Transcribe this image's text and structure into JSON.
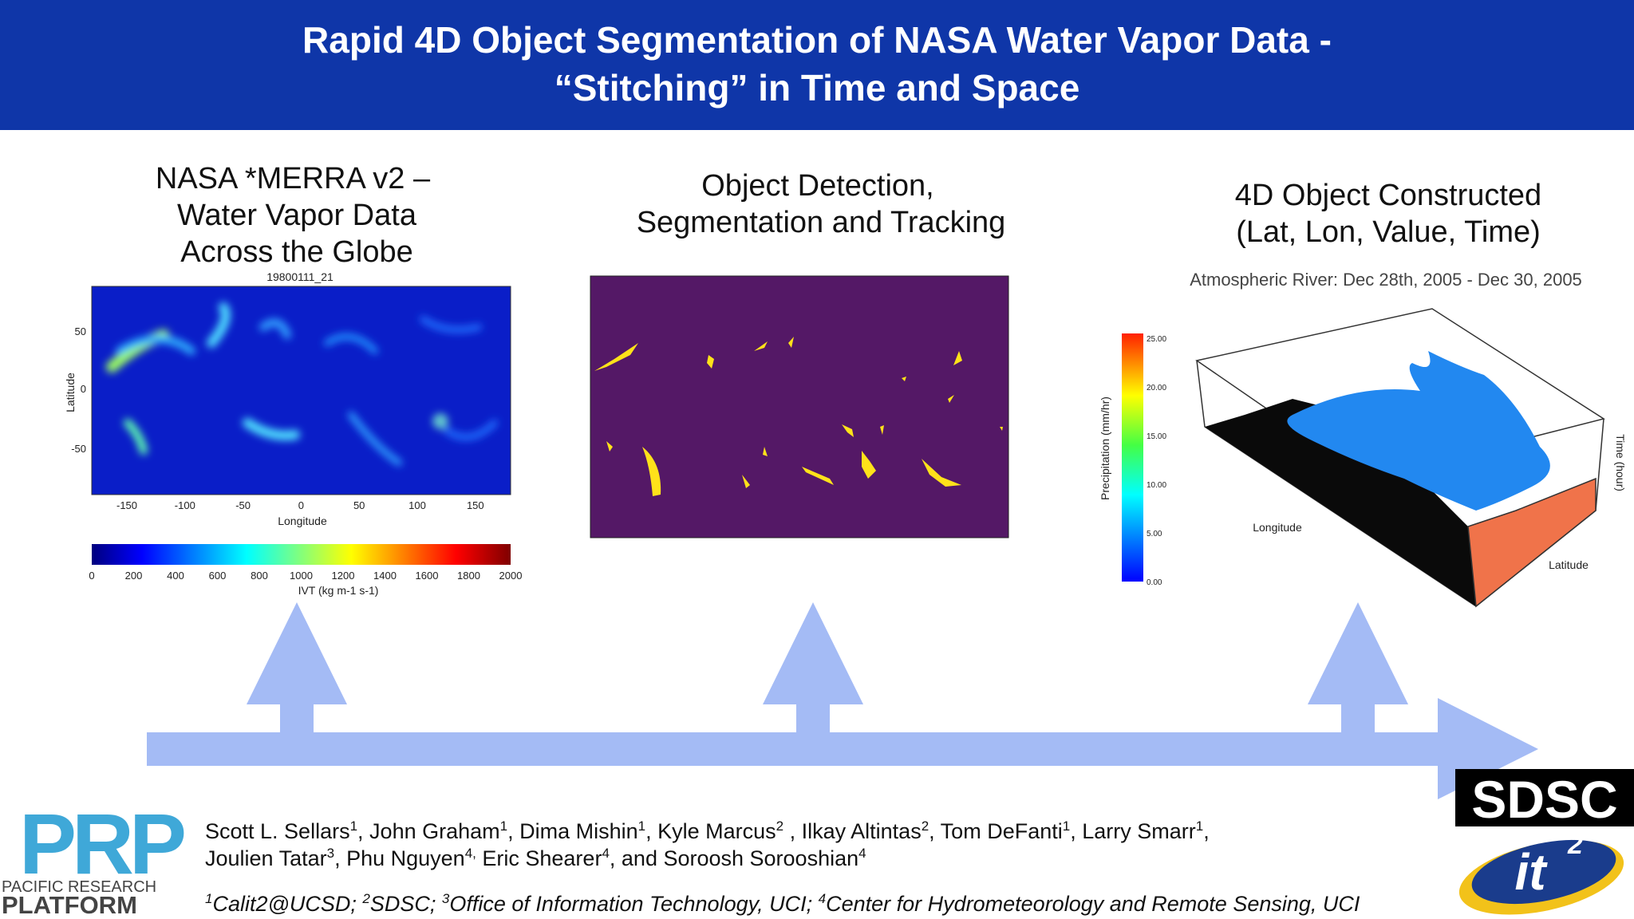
{
  "header": {
    "title_lines": [
      "Rapid 4D Object Segmentation of NASA Water Vapor Data -",
      "“Stitching” in Time and Space"
    ]
  },
  "panels": [
    {
      "title_lines": [
        "NASA *MERRA v2 –",
        "Water Vapor Data",
        "Across the Globe"
      ],
      "figure": {
        "timestamp": "19800111_21",
        "y_label": "Latitude",
        "x_label": "Longitude",
        "y_ticks": [
          "50",
          "0",
          "-50"
        ],
        "x_ticks": [
          "-150",
          "-100",
          "-50",
          "0",
          "50",
          "100",
          "150"
        ],
        "colorbar_ticks": [
          "0",
          "200",
          "400",
          "600",
          "800",
          "1000",
          "1200",
          "1400",
          "1600",
          "1800",
          "2000"
        ],
        "colorbar_label": "IVT (kg m-1 s-1)"
      }
    },
    {
      "title_lines": [
        "Object Detection,",
        "Segmentation and Tracking"
      ]
    },
    {
      "title_lines": [
        "4D Object Constructed",
        "(Lat, Lon, Value, Time)"
      ],
      "figure": {
        "title": "Atmospheric River: Dec 28th, 2005 - Dec 30, 2005",
        "colorbar_label": "Precipitation (mm/hr)",
        "colorbar_ticks": [
          "25.00",
          "20.00",
          "15.00",
          "10.00",
          "5.00",
          "0.00"
        ],
        "x_label": "Longitude",
        "y_label": "Latitude",
        "z_label": "Time (hour)"
      }
    }
  ],
  "credits": {
    "author_lines": [
      [
        {
          "text": "Scott L. Sellars"
        },
        {
          "sup": "1"
        },
        {
          "text": ", John Graham"
        },
        {
          "sup": "1"
        },
        {
          "text": ", Dima Mishin"
        },
        {
          "sup": "1"
        },
        {
          "text": ", Kyle Marcus"
        },
        {
          "sup": "2"
        },
        {
          "text": " , Ilkay Altintas"
        },
        {
          "sup": "2"
        },
        {
          "text": ", Tom DeFanti"
        },
        {
          "sup": "1"
        },
        {
          "text": ", Larry Smarr"
        },
        {
          "sup": "1"
        },
        {
          "text": ","
        }
      ],
      [
        {
          "text": "Joulien Tatar"
        },
        {
          "sup": "3"
        },
        {
          "text": ", Phu Nguyen"
        },
        {
          "sup": "4,"
        },
        {
          "text": " Eric Shearer"
        },
        {
          "sup": "4"
        },
        {
          "text": ", and Soroosh Sorooshian"
        },
        {
          "sup": "4"
        }
      ]
    ],
    "affiliations": [
      {
        "sup": "1"
      },
      {
        "text": "Calit2@UCSD; "
      },
      {
        "sup": "2"
      },
      {
        "text": "SDSC; "
      },
      {
        "sup": "3"
      },
      {
        "text": "Office of Information Technology, UCI; "
      },
      {
        "sup": "4"
      },
      {
        "text": "Center for Hydrometeorology and Remote Sensing, UCI"
      }
    ]
  },
  "logos": {
    "prp": {
      "mark": "PRP",
      "line1": "PACIFIC RESEARCH",
      "line2": "PLATFORM"
    },
    "sdsc": "SDSC",
    "it": {
      "text": "it",
      "sup": "2"
    }
  }
}
